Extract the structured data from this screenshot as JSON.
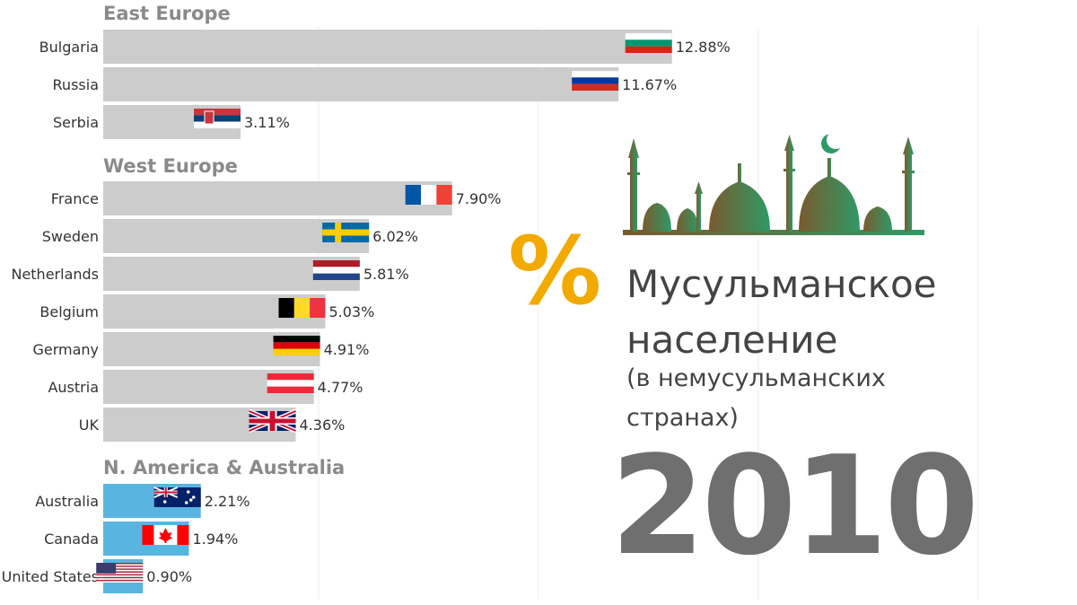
{
  "colors": {
    "europe_bar": "#cccccc",
    "america_bar": "#5ab4e0",
    "percent_sign": "#f2a900",
    "title_text": "#444444",
    "year_text": "#6f6f6f",
    "group_title": "#8a8a8a",
    "mosque_gradient": [
      "#7a5a2e",
      "#2e9a66"
    ]
  },
  "headline": {
    "percent_symbol": "%",
    "line1": "Мусульманское",
    "line2": "население",
    "line3": "(в немусульманских",
    "line4": "странах)",
    "year": "2010"
  },
  "illustration": {
    "icon": "mosque-skyline-icon"
  },
  "chart_data": {
    "type": "bar",
    "orientation": "horizontal",
    "value_format": "percent",
    "xlim": [
      0,
      18
    ],
    "groups": [
      {
        "title": "East Europe",
        "bar_color": "#cccccc",
        "rows": [
          {
            "country": "Bulgaria",
            "value": 12.88,
            "label": "12.88%",
            "flag": "bulgaria-flag-icon"
          },
          {
            "country": "Russia",
            "value": 11.67,
            "label": "11.67%",
            "flag": "russia-flag-icon"
          },
          {
            "country": "Serbia",
            "value": 3.11,
            "label": "3.11%",
            "flag": "serbia-flag-icon"
          }
        ]
      },
      {
        "title": "West Europe",
        "bar_color": "#cccccc",
        "rows": [
          {
            "country": "France",
            "value": 7.9,
            "label": "7.90%",
            "flag": "france-flag-icon"
          },
          {
            "country": "Sweden",
            "value": 6.02,
            "label": "6.02%",
            "flag": "sweden-flag-icon"
          },
          {
            "country": "Netherlands",
            "value": 5.81,
            "label": "5.81%",
            "flag": "netherlands-flag-icon"
          },
          {
            "country": "Belgium",
            "value": 5.03,
            "label": "5.03%",
            "flag": "belgium-flag-icon"
          },
          {
            "country": "Germany",
            "value": 4.91,
            "label": "4.91%",
            "flag": "germany-flag-icon"
          },
          {
            "country": "Austria",
            "value": 4.77,
            "label": "4.77%",
            "flag": "austria-flag-icon"
          },
          {
            "country": "UK",
            "value": 4.36,
            "label": "4.36%",
            "flag": "uk-flag-icon"
          }
        ]
      },
      {
        "title": "N. America & Australia",
        "bar_color": "#5ab4e0",
        "rows": [
          {
            "country": "Australia",
            "value": 2.21,
            "label": "2.21%",
            "flag": "australia-flag-icon"
          },
          {
            "country": "Canada",
            "value": 1.94,
            "label": "1.94%",
            "flag": "canada-flag-icon"
          },
          {
            "country": "United States",
            "value": 0.9,
            "label": "0.90%",
            "flag": "usa-flag-icon"
          }
        ]
      }
    ]
  }
}
